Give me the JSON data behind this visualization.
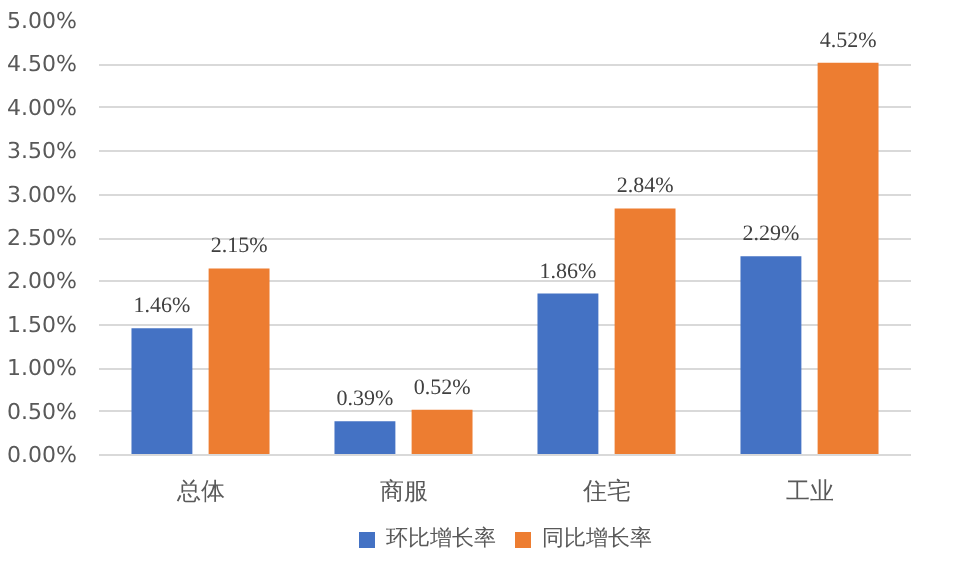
{
  "chart_data": {
    "type": "bar",
    "categories": [
      "总体",
      "商服",
      "住宅",
      "工业"
    ],
    "series": [
      {
        "name": "环比增长率",
        "color": "#4472c4",
        "values": [
          1.46,
          0.39,
          1.86,
          2.29
        ],
        "value_labels": [
          "1.46%",
          "0.39%",
          "1.86%",
          "2.29%"
        ]
      },
      {
        "name": "同比增长率",
        "color": "#ed7d31",
        "values": [
          2.15,
          0.52,
          2.84,
          4.52
        ],
        "value_labels": [
          "2.15%",
          "0.52%",
          "2.84%",
          "4.52%"
        ]
      }
    ],
    "ylim": [
      0,
      5
    ],
    "yticks": [
      {
        "value": 0,
        "label": "0.00%"
      },
      {
        "value": 0.5,
        "label": "0.50%"
      },
      {
        "value": 1,
        "label": "1.00%"
      },
      {
        "value": 1.5,
        "label": "1.50%"
      },
      {
        "value": 2,
        "label": "2.00%"
      },
      {
        "value": 2.5,
        "label": "2.50%"
      },
      {
        "value": 3,
        "label": "3.00%"
      },
      {
        "value": 3.5,
        "label": "3.50%"
      },
      {
        "value": 4,
        "label": "4.00%"
      },
      {
        "value": 4.5,
        "label": "4.50%"
      },
      {
        "value": 5,
        "label": "5.00%"
      }
    ],
    "grid": "y",
    "legend": "bottom"
  }
}
